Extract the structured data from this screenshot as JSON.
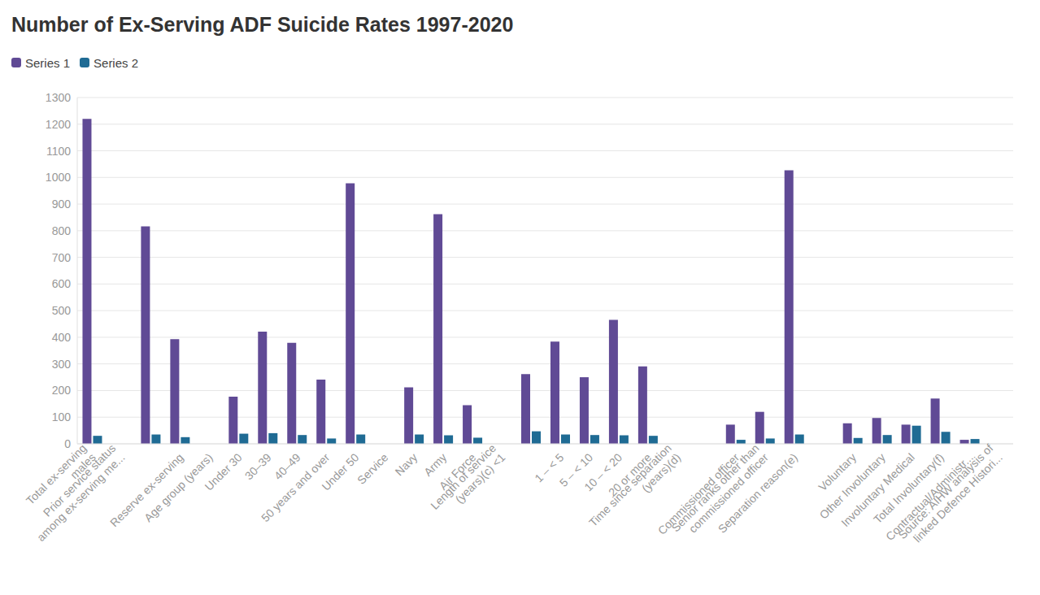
{
  "chart_data": {
    "type": "bar",
    "title": "Number of Ex-Serving ADF Suicide Rates 1997-2020",
    "categories": [
      "Total ex-serving males",
      "Prior service status among ex-serving me...",
      null,
      "Reserve ex-serving",
      "Age group (years)",
      "Under 30",
      "30–39",
      "40–49",
      "50 years and over",
      "Under 50",
      "Service",
      "Navy",
      "Army",
      "Air Force",
      "Length of service (years)(c) <1",
      null,
      "1 – < 5",
      "5 – < 10",
      "10 – < 20",
      "20 or more",
      "Time since separation (years)(d)",
      null,
      "Commissioned officer",
      "Senior ranks other than commissioned officer",
      "Separation reason(e)",
      null,
      "Voluntary",
      "Other Involuntary",
      "Involuntary Medical",
      "Total Involuntary(f)",
      "Contractual/Administr...",
      "Source: AIHW analysis of linked Defence Histori..."
    ],
    "series": [
      {
        "name": "Series 1",
        "color": "#604a95",
        "values": [
          1220,
          null,
          816,
          393,
          null,
          177,
          421,
          379,
          241,
          978,
          null,
          212,
          862,
          145,
          null,
          262,
          384,
          250,
          465,
          291,
          null,
          null,
          72,
          120,
          1027,
          null,
          77,
          97,
          72,
          170,
          15,
          null
        ]
      },
      {
        "name": "Series 2",
        "color": "#1f6b94",
        "values": [
          30,
          null,
          35,
          25,
          null,
          38,
          40,
          33,
          20,
          35,
          null,
          35,
          32,
          23,
          null,
          47,
          35,
          33,
          32,
          30,
          null,
          null,
          15,
          20,
          35,
          null,
          22,
          33,
          68,
          45,
          18,
          null
        ]
      }
    ],
    "ylim": [
      0,
      1300
    ],
    "yticks": [
      0,
      100,
      200,
      300,
      400,
      500,
      600,
      700,
      800,
      900,
      1000,
      1100,
      1200,
      1300
    ],
    "grid": true,
    "legend": "top-left"
  }
}
